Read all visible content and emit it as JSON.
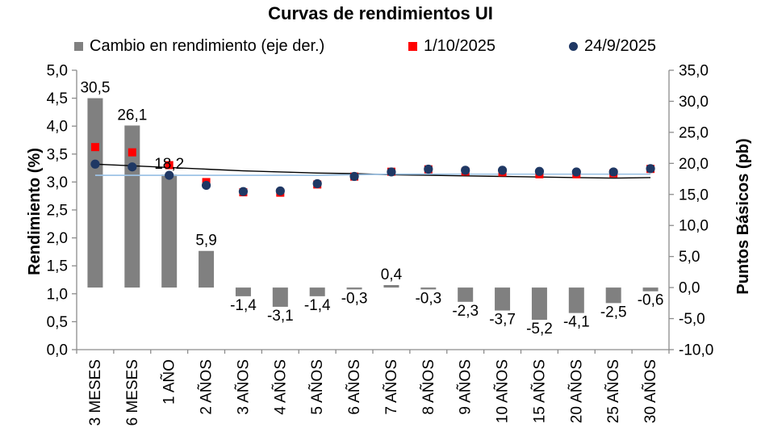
{
  "title": "Curvas de rendimientos UI",
  "legend": [
    {
      "label": "Cambio en rendimiento (eje der.)",
      "marker": "square",
      "color": "#808080"
    },
    {
      "label": "1/10/2025",
      "marker": "square",
      "color": "#FF0000"
    },
    {
      "label": "24/9/2025",
      "marker": "circle",
      "color": "#1F3864"
    }
  ],
  "chart_data": {
    "type": "combo-bar-scatter-line",
    "title": "Curvas de rendimientos UI",
    "grid": false,
    "legend_position": "top",
    "number_format": "comma-decimal",
    "categories": [
      "3 MESES",
      "6 MESES",
      "1 AÑO",
      "2 AÑOS",
      "3 AÑOS",
      "4 AÑOS",
      "5 AÑOS",
      "6 AÑOS",
      "7 AÑOS",
      "8 AÑOS",
      "9 AÑOS",
      "10 AÑOS",
      "15 AÑOS",
      "20 AÑOS",
      "25 AÑOS",
      "30 AÑOS"
    ],
    "left_axis": {
      "title": "Rendimiento (%)",
      "min": 0.0,
      "max": 5.0,
      "step": 0.5,
      "tick_labels": [
        "5,0",
        "4,5",
        "4,0",
        "3,5",
        "3,0",
        "2,5",
        "2,0",
        "1,5",
        "1,0",
        "0,5",
        "0,0"
      ]
    },
    "right_axis": {
      "title": "Puntos Básicos (pb)",
      "min": -10.0,
      "max": 35.0,
      "step": 5.0,
      "tick_labels": [
        "35,0",
        "30,0",
        "25,0",
        "20,0",
        "15,0",
        "10,0",
        "5,0",
        "0,0",
        "-5,0",
        "-10,0"
      ]
    },
    "series": [
      {
        "name": "Cambio en rendimiento (eje der.)",
        "type": "bar",
        "axis": "right",
        "color": "#808080",
        "values": [
          30.5,
          26.1,
          18.2,
          5.9,
          -1.4,
          -3.1,
          -1.4,
          -0.3,
          0.4,
          -0.3,
          -2.3,
          -3.7,
          -5.2,
          -4.1,
          -2.5,
          -0.6
        ],
        "labels": [
          "30,5",
          "26,1",
          "18,2",
          "5,9",
          "-1,4",
          "-3,1",
          "-1,4",
          "-0,3",
          "0,4",
          "-0,3",
          "-2,3",
          "-3,7",
          "-5,2",
          "-4,1",
          "-2,5",
          "-0,6"
        ]
      },
      {
        "name": "1/10/2025",
        "type": "scatter",
        "marker": "square",
        "axis": "left",
        "color": "#FF0000",
        "values": [
          3.625,
          3.531,
          3.302,
          2.999,
          2.816,
          2.809,
          2.956,
          3.097,
          3.184,
          3.227,
          3.187,
          3.173,
          3.138,
          3.139,
          3.155,
          3.234
        ]
      },
      {
        "name": "24/9/2025",
        "type": "scatter",
        "marker": "circle",
        "axis": "left",
        "color": "#1F3864",
        "values": [
          3.32,
          3.27,
          3.12,
          2.94,
          2.83,
          2.84,
          2.97,
          3.1,
          3.18,
          3.23,
          3.21,
          3.21,
          3.19,
          3.18,
          3.18,
          3.24
        ]
      },
      {
        "name": "curva-tendencia-negra",
        "type": "line",
        "axis": "left",
        "color": "#000000",
        "values": [
          3.32,
          3.29,
          3.26,
          3.23,
          3.2,
          3.18,
          3.16,
          3.15,
          3.13,
          3.12,
          3.11,
          3.1,
          3.09,
          3.08,
          3.07,
          3.08
        ]
      },
      {
        "name": "linea-celeste",
        "type": "line",
        "axis": "left",
        "color": "#9DC3E6",
        "values": [
          3.12,
          3.12,
          3.12,
          3.12,
          3.12,
          3.12,
          3.12,
          3.13,
          3.14,
          3.14,
          3.14,
          3.14,
          3.14,
          3.14,
          3.14,
          3.14
        ]
      }
    ]
  }
}
